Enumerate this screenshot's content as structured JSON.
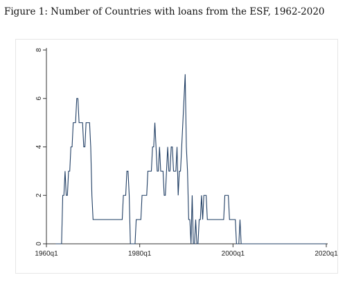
{
  "figure": {
    "caption": "Figure 1: Number of Countries with loans from the ESF, 1962-2020"
  },
  "chart_data": {
    "type": "line",
    "title": "",
    "xlabel": "",
    "ylabel": "",
    "x_time_unit": "quarter",
    "xlim": [
      "1960q1",
      "2020q1"
    ],
    "ylim": [
      0,
      8
    ],
    "y_ticks": [
      0,
      2,
      4,
      6,
      8
    ],
    "x_ticks": [
      "1960q1",
      "1980q1",
      "2000q1",
      "2020q1"
    ],
    "grid": false,
    "legend": "none",
    "line_color": "#1f3d63",
    "series": [
      {
        "x": [
          "1962q1",
          "1963q2",
          "1963q3",
          "1963q4",
          "1964q1",
          "1964q2",
          "1964q3",
          "1964q4",
          "1965q1",
          "1965q2",
          "1965q3",
          "1965q4",
          "1966q1",
          "1966q2",
          "1966q3",
          "1966q4",
          "1967q1",
          "1967q2",
          "1967q3",
          "1967q4",
          "1968q1",
          "1968q2",
          "1968q3",
          "1968q4",
          "1969q1",
          "1969q2",
          "1969q3",
          "1969q4",
          "1970q1",
          "1976q1",
          "1976q2",
          "1976q3",
          "1976q4",
          "1977q1",
          "1977q2",
          "1977q3",
          "1977q4",
          "1978q1",
          "1978q2",
          "1978q3",
          "1979q1",
          "1979q2",
          "1980q1",
          "1980q2",
          "1980q3",
          "1981q3",
          "1981q4",
          "1982q3",
          "1982q4",
          "1983q1",
          "1983q2",
          "1983q3",
          "1983q4",
          "1984q1",
          "1984q2",
          "1984q3",
          "1984q4",
          "1985q1",
          "1985q2",
          "1985q3",
          "1985q4",
          "1986q1",
          "1986q2",
          "1986q3",
          "1986q4",
          "1987q1",
          "1987q2",
          "1987q3",
          "1987q4",
          "1988q1",
          "1988q2",
          "1988q3",
          "1988q4",
          "1989q1",
          "1989q2",
          "1989q3",
          "1989q4",
          "1990q1",
          "1990q2",
          "1990q3",
          "1990q4",
          "1991q1",
          "1991q2",
          "1991q3",
          "1991q4",
          "1992q1",
          "1992q2",
          "1992q3",
          "1992q4",
          "1993q1",
          "1993q2",
          "1993q3",
          "1993q4",
          "1994q1",
          "1994q2",
          "1994q3",
          "1994q4",
          "1995q1",
          "1995q2",
          "1995q3",
          "1995q4",
          "1996q1",
          "1998q1",
          "1998q2",
          "1998q3",
          "1998q4",
          "1999q1",
          "1999q2",
          "2000q1",
          "2000q2",
          "2000q3",
          "2000q4",
          "2001q1",
          "2001q2",
          "2001q3",
          "2001q4",
          "2002q1",
          "2002q2",
          "2020q1"
        ],
        "values": [
          0,
          0,
          2,
          2,
          3,
          2,
          2,
          3,
          3,
          4,
          4,
          5,
          5,
          5,
          6,
          6,
          5,
          5,
          5,
          5,
          4,
          4,
          5,
          5,
          5,
          5,
          4,
          2,
          1,
          1,
          1,
          2,
          2,
          2,
          3,
          3,
          2,
          0,
          0,
          0,
          0,
          1,
          1,
          1,
          2,
          2,
          3,
          3,
          4,
          4,
          5,
          4,
          3,
          3,
          4,
          3,
          3,
          3,
          2,
          2,
          3,
          4,
          3,
          3,
          4,
          4,
          3,
          3,
          3,
          4,
          2,
          3,
          3,
          4,
          5,
          6,
          7,
          4,
          3,
          1,
          1,
          0,
          2,
          0,
          0,
          1,
          0,
          0,
          1,
          1,
          2,
          1,
          2,
          2,
          2,
          1,
          1,
          1,
          1,
          1,
          1,
          1,
          1,
          2,
          2,
          2,
          2,
          1,
          1,
          1,
          1,
          0,
          0,
          0,
          1,
          0,
          0,
          0,
          0
        ]
      }
    ]
  }
}
